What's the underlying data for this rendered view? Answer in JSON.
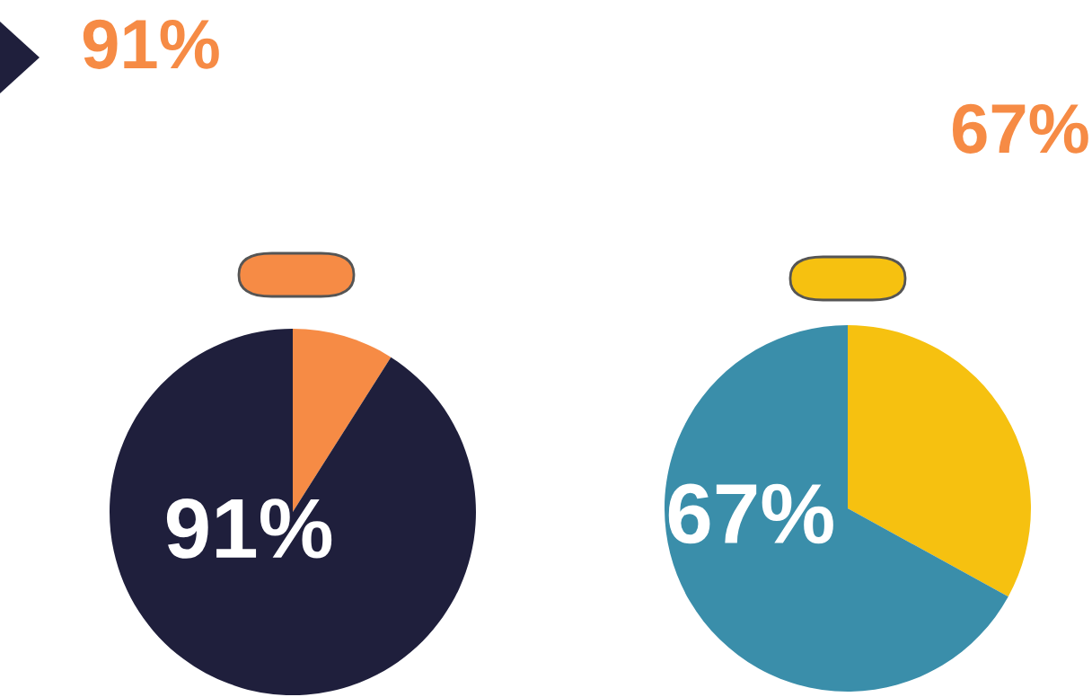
{
  "chart_data": [
    {
      "type": "pie",
      "categories": [
        null,
        null
      ],
      "values": [
        9,
        91
      ],
      "colors": [
        "#f68b45",
        "#1f1f3c"
      ],
      "value_labels": [
        null,
        "91%"
      ],
      "annotations": [
        "91%"
      ]
    },
    {
      "type": "pie",
      "categories": [
        null,
        null
      ],
      "values": [
        33,
        67
      ],
      "colors": [
        "#f6c110",
        "#3a8eaa"
      ],
      "value_labels": [
        null,
        "67%"
      ],
      "annotations": [
        "67%"
      ]
    }
  ]
}
